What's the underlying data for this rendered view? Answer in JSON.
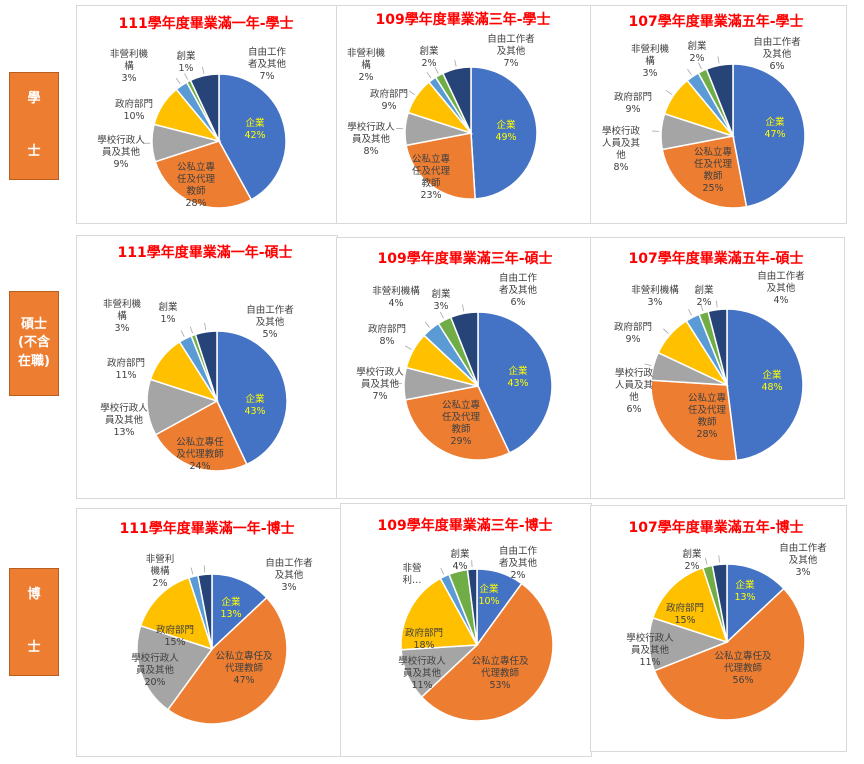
{
  "sections": [
    {
      "lines": [
        "學",
        "士"
      ]
    },
    {
      "lines": [
        "碩士",
        "(不含",
        "在職)"
      ]
    },
    {
      "lines": [
        "博",
        "士"
      ]
    }
  ],
  "categories": [
    "企業",
    "公私立專任及代理教師",
    "學校行政人員及其他",
    "政府部門",
    "非營利機構",
    "創業",
    "自由工作者及其他"
  ],
  "colors": [
    "#4472c4",
    "#ed7d31",
    "#a5a5a5",
    "#ffc000",
    "#5b9bd5",
    "#70ad47",
    "#264478"
  ],
  "chart_data": [
    {
      "type": "pie",
      "title": "111學年度畢業滿一年-學士",
      "values": [
        42,
        28,
        9,
        10,
        3,
        1,
        7
      ]
    },
    {
      "type": "pie",
      "title": "109學年度畢業滿三年-學士",
      "values": [
        49,
        23,
        8,
        9,
        2,
        2,
        7
      ]
    },
    {
      "type": "pie",
      "title": "107學年度畢業滿五年-學士",
      "values": [
        47,
        25,
        8,
        9,
        3,
        2,
        6
      ]
    },
    {
      "type": "pie",
      "title": "111學年度畢業滿一年-碩士",
      "values": [
        43,
        24,
        13,
        11,
        3,
        1,
        5
      ]
    },
    {
      "type": "pie",
      "title": "109學年度畢業滿三年-碩士",
      "values": [
        43,
        29,
        7,
        8,
        4,
        3,
        6
      ]
    },
    {
      "type": "pie",
      "title": "107學年度畢業滿五年-碩士",
      "values": [
        48,
        28,
        6,
        9,
        3,
        2,
        4
      ]
    },
    {
      "type": "pie",
      "title": "111學年度畢業滿一年-博士",
      "values": [
        13,
        47,
        20,
        15,
        2,
        0,
        3
      ]
    },
    {
      "type": "pie",
      "title": "109學年度畢業滿三年-博士",
      "values": [
        10,
        53,
        11,
        18,
        2,
        4,
        2
      ],
      "truncated_label": {
        "index": 4,
        "text": "非營利…"
      }
    },
    {
      "type": "pie",
      "title": "107學年度畢業滿五年-博士",
      "values": [
        13,
        56,
        11,
        15,
        0,
        2,
        3
      ]
    }
  ]
}
